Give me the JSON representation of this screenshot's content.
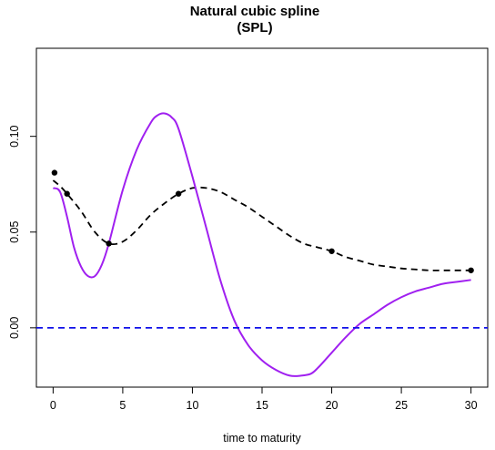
{
  "chart_data": {
    "type": "line",
    "title": "Natural cubic spline",
    "subtitle": "(SPL)",
    "xlabel": "time to maturity",
    "ylabel": "",
    "xlim": [
      -1.2,
      31.2
    ],
    "ylim": [
      -0.031,
      0.146
    ],
    "x_ticks": [
      0,
      5,
      10,
      15,
      20,
      25,
      30
    ],
    "y_ticks": [
      0.0,
      0.05,
      0.1
    ],
    "x_tick_labels": [
      "0",
      "5",
      "10",
      "15",
      "20",
      "25",
      "30"
    ],
    "y_tick_labels": [
      "0.00",
      "0.05",
      "0.10"
    ],
    "grid": false,
    "legend": "none",
    "points": {
      "x": [
        0.1,
        1,
        4,
        9,
        20,
        30
      ],
      "y": [
        0.081,
        0.07,
        0.044,
        0.07,
        0.04,
        0.03
      ],
      "color": "#000000"
    },
    "series": [
      {
        "style": "dashed",
        "color": "#000000",
        "x": [
          0,
          0.5,
          1,
          2,
          3,
          4,
          5,
          6,
          7,
          8,
          9,
          10,
          11,
          12,
          13,
          14,
          15,
          16,
          17,
          18,
          19,
          20,
          21,
          22,
          23,
          24,
          25,
          26,
          27,
          28,
          29,
          30
        ],
        "y": [
          0.077,
          0.074,
          0.07,
          0.061,
          0.05,
          0.044,
          0.045,
          0.051,
          0.059,
          0.065,
          0.07,
          0.073,
          0.073,
          0.071,
          0.067,
          0.063,
          0.058,
          0.053,
          0.048,
          0.044,
          0.042,
          0.04,
          0.037,
          0.035,
          0.033,
          0.032,
          0.031,
          0.0305,
          0.03,
          0.03,
          0.03,
          0.03
        ]
      },
      {
        "style": "solid",
        "color": "#a020f0",
        "x": [
          0,
          0.5,
          1,
          1.5,
          2,
          2.5,
          3,
          3.5,
          4,
          5,
          6,
          7,
          7.5,
          8,
          8.5,
          9,
          10,
          11,
          12,
          13,
          14,
          15,
          16,
          17,
          17.8,
          18.5,
          19,
          20,
          21,
          22,
          23,
          24,
          25,
          26,
          27,
          28,
          29,
          30
        ],
        "y": [
          0.073,
          0.071,
          0.058,
          0.042,
          0.032,
          0.027,
          0.027,
          0.033,
          0.044,
          0.072,
          0.093,
          0.107,
          0.111,
          0.112,
          0.11,
          0.104,
          0.079,
          0.052,
          0.025,
          0.004,
          -0.009,
          -0.017,
          -0.022,
          -0.025,
          -0.025,
          -0.024,
          -0.021,
          -0.013,
          -0.005,
          0.002,
          0.007,
          0.012,
          0.016,
          0.019,
          0.021,
          0.023,
          0.024,
          0.025
        ]
      },
      {
        "style": "dashed",
        "color": "#1010e8",
        "x": [
          -1.2,
          31.2
        ],
        "y": [
          0.0,
          0.0
        ]
      }
    ]
  }
}
